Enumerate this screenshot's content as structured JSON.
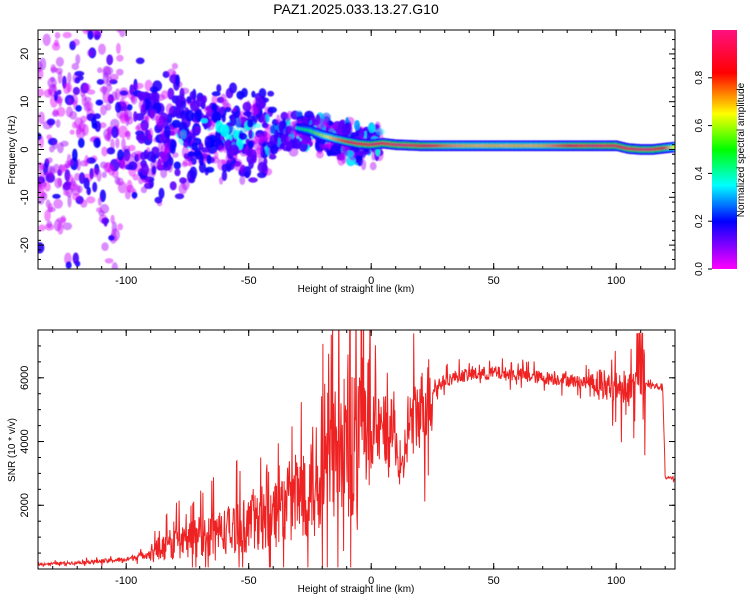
{
  "title": "PAZ1.2025.033.13.27.G10",
  "chart_data": [
    {
      "type": "heatmap",
      "xlabel": "Height of straight line (km)",
      "ylabel": "Frequency (Hz)",
      "xlim": [
        -136,
        124
      ],
      "ylim": [
        -25,
        25
      ],
      "xticks": [
        -100,
        -50,
        0,
        50,
        100
      ],
      "yticks": [
        -20,
        -10,
        0,
        10,
        20
      ],
      "grid": false,
      "colorbar": {
        "label": "Normalized spectral amplitude",
        "range": [
          0,
          1
        ],
        "ticks": [
          "0.0",
          "0.2",
          "0.4",
          "0.6",
          "0.8"
        ],
        "colormap": [
          "#ff00ff",
          "#0000ff",
          "#00ffff",
          "#00ff00",
          "#ffff00",
          "#ff0000",
          "#ff0080"
        ]
      },
      "ridge": {
        "x": [
          -30,
          -25,
          -20,
          -15,
          -10,
          -5,
          0,
          5,
          10,
          15,
          20,
          30,
          40,
          50,
          60,
          70,
          80,
          90,
          100,
          105,
          110,
          115,
          120,
          124
        ],
        "freq": [
          4.5,
          4.0,
          3.0,
          2.3,
          1.7,
          1.2,
          1.0,
          1.3,
          1.0,
          0.9,
          0.8,
          0.8,
          0.8,
          0.8,
          0.8,
          0.8,
          0.8,
          0.8,
          0.8,
          0.2,
          0.0,
          0.0,
          0.3,
          0.5
        ],
        "amplitude": [
          0.4,
          0.5,
          0.6,
          0.7,
          0.8,
          0.85,
          0.9,
          0.9,
          0.95,
          0.95,
          0.9,
          0.75,
          0.7,
          0.7,
          0.7,
          0.7,
          0.8,
          0.95,
          0.9,
          0.9,
          0.95,
          0.95,
          0.8,
          0.6
        ]
      }
    },
    {
      "type": "line",
      "xlabel": "Height of straight line (km)",
      "ylabel": "SNR (10 * v/v)",
      "xlim": [
        -136,
        124
      ],
      "ylim": [
        0,
        7500
      ],
      "xticks": [
        -100,
        -50,
        0,
        50,
        100
      ],
      "yticks": [
        2000,
        4000,
        6000
      ],
      "grid": false,
      "series": [
        {
          "color": "#ee2222",
          "x": [
            -136,
            -120,
            -110,
            -100,
            -95,
            -90,
            -85,
            -80,
            -75,
            -70,
            -65,
            -60,
            -55,
            -50,
            -45,
            -40,
            -35,
            -30,
            -25,
            -20,
            -15,
            -10,
            -5,
            0,
            5,
            10,
            12,
            15,
            20,
            25,
            30,
            35,
            40,
            50,
            60,
            70,
            80,
            85,
            90,
            95,
            100,
            105,
            110,
            115,
            119,
            120,
            124
          ],
          "y": [
            150,
            200,
            250,
            300,
            400,
            500,
            700,
            800,
            900,
            1000,
            1100,
            1200,
            1300,
            1400,
            1600,
            1800,
            2000,
            2300,
            2700,
            3100,
            3500,
            3800,
            4100,
            4300,
            4400,
            4200,
            2600,
            4500,
            5000,
            5600,
            5900,
            6050,
            6100,
            6150,
            6100,
            6000,
            5950,
            5850,
            5900,
            5800,
            5700,
            5700,
            5800,
            5750,
            5700,
            2850,
            2850
          ]
        }
      ]
    }
  ]
}
